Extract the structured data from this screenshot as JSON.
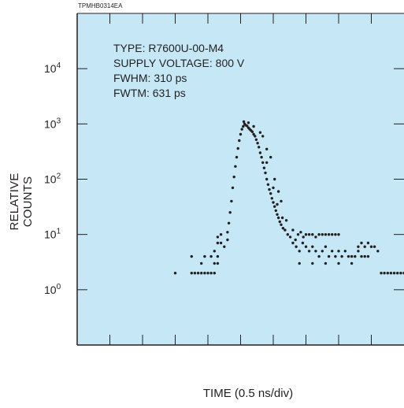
{
  "figure_code": "TPMHB0314EA",
  "annotations": {
    "type": "TYPE: R7600U-00-M4",
    "voltage": "SUPPLY VOLTAGE: 800 V",
    "fwhm": "FWHM: 310 ps",
    "fwtm": "FWTM: 631 ps"
  },
  "colors": {
    "plot_background": "#c6e8f6",
    "points": "#231f20",
    "axes": "#231f20"
  },
  "chart_data": {
    "type": "scatter",
    "title": "",
    "xlabel": "TIME (0.5 ns/div)",
    "ylabel": "RELATIVE COUNTS",
    "y_scale": "log",
    "ylim": [
      0.1,
      100000
    ],
    "y_ticks": [
      {
        "value": 1,
        "base": "10",
        "exp": "0"
      },
      {
        "value": 10,
        "base": "10",
        "exp": "1"
      },
      {
        "value": 100,
        "base": "10",
        "exp": "2"
      },
      {
        "value": 1000,
        "base": "10",
        "exp": "3"
      },
      {
        "value": 10000,
        "base": "10",
        "exp": "4"
      }
    ],
    "x_unit": "ns",
    "xlim": [
      0,
      5
    ],
    "x_major_step": 0.5,
    "grid": false,
    "points": [
      [
        1.5,
        2
      ],
      [
        1.75,
        4
      ],
      [
        1.75,
        2
      ],
      [
        1.8,
        2
      ],
      [
        1.85,
        2
      ],
      [
        1.9,
        2
      ],
      [
        1.95,
        2
      ],
      [
        2.0,
        2
      ],
      [
        2.05,
        2
      ],
      [
        2.1,
        2
      ],
      [
        1.95,
        4
      ],
      [
        2.05,
        4
      ],
      [
        2.15,
        4
      ],
      [
        1.9,
        3
      ],
      [
        2.1,
        3
      ],
      [
        2.15,
        3
      ],
      [
        2.1,
        5
      ],
      [
        2.15,
        7
      ],
      [
        2.15,
        9
      ],
      [
        2.2,
        7
      ],
      [
        2.2,
        10
      ],
      [
        2.25,
        6
      ],
      [
        2.3,
        8
      ],
      [
        2.3,
        11
      ],
      [
        2.32,
        16
      ],
      [
        2.34,
        25
      ],
      [
        2.36,
        40
      ],
      [
        2.38,
        70
      ],
      [
        2.4,
        110
      ],
      [
        2.42,
        170
      ],
      [
        2.44,
        250
      ],
      [
        2.46,
        360
      ],
      [
        2.48,
        500
      ],
      [
        2.5,
        650
      ],
      [
        2.52,
        800
      ],
      [
        2.54,
        900
      ],
      [
        2.56,
        1000
      ],
      [
        2.58,
        950
      ],
      [
        2.6,
        920
      ],
      [
        2.62,
        850
      ],
      [
        2.64,
        800
      ],
      [
        2.66,
        760
      ],
      [
        2.68,
        720
      ],
      [
        2.7,
        650
      ],
      [
        2.72,
        600
      ],
      [
        2.74,
        520
      ],
      [
        2.76,
        450
      ],
      [
        2.78,
        380
      ],
      [
        2.8,
        300
      ],
      [
        2.82,
        250
      ],
      [
        2.84,
        200
      ],
      [
        2.86,
        160
      ],
      [
        2.88,
        130
      ],
      [
        2.9,
        100
      ],
      [
        2.92,
        80
      ],
      [
        2.94,
        65
      ],
      [
        2.96,
        55
      ],
      [
        2.98,
        45
      ],
      [
        3.0,
        38
      ],
      [
        3.02,
        32
      ],
      [
        3.04,
        27
      ],
      [
        3.06,
        23
      ],
      [
        3.08,
        20
      ],
      [
        3.1,
        17
      ],
      [
        3.12,
        15
      ],
      [
        3.15,
        13
      ],
      [
        2.8,
        700
      ],
      [
        2.84,
        600
      ],
      [
        2.9,
        350
      ],
      [
        2.96,
        250
      ],
      [
        3.02,
        100
      ],
      [
        3.08,
        60
      ],
      [
        3.12,
        40
      ],
      [
        2.55,
        1100
      ],
      [
        2.62,
        1050
      ],
      [
        2.7,
        900
      ],
      [
        2.9,
        200
      ],
      [
        3.0,
        70
      ],
      [
        3.06,
        35
      ],
      [
        3.14,
        20
      ],
      [
        3.2,
        18
      ],
      [
        3.18,
        12
      ],
      [
        3.22,
        10
      ],
      [
        3.26,
        9
      ],
      [
        3.3,
        12
      ],
      [
        3.34,
        8
      ],
      [
        3.38,
        10
      ],
      [
        3.42,
        11
      ],
      [
        3.46,
        9
      ],
      [
        3.5,
        10
      ],
      [
        3.3,
        7
      ],
      [
        3.35,
        6
      ],
      [
        3.4,
        5
      ],
      [
        3.45,
        7
      ],
      [
        3.5,
        6
      ],
      [
        3.55,
        5
      ],
      [
        3.6,
        6
      ],
      [
        3.65,
        5
      ],
      [
        3.7,
        4
      ],
      [
        3.55,
        10
      ],
      [
        3.6,
        10
      ],
      [
        3.65,
        9
      ],
      [
        3.7,
        10
      ],
      [
        3.75,
        10
      ],
      [
        3.8,
        10
      ],
      [
        3.85,
        10
      ],
      [
        3.9,
        10
      ],
      [
        3.95,
        10
      ],
      [
        4.0,
        10
      ],
      [
        3.75,
        5
      ],
      [
        3.8,
        6
      ],
      [
        3.85,
        4
      ],
      [
        3.9,
        5
      ],
      [
        3.95,
        4
      ],
      [
        4.0,
        5
      ],
      [
        4.05,
        4
      ],
      [
        4.1,
        5
      ],
      [
        4.15,
        4
      ],
      [
        4.2,
        4
      ],
      [
        4.25,
        4
      ],
      [
        4.3,
        5
      ],
      [
        4.35,
        4
      ],
      [
        4.4,
        4
      ],
      [
        3.4,
        3
      ],
      [
        3.6,
        3
      ],
      [
        3.8,
        3
      ],
      [
        4.0,
        3
      ],
      [
        4.2,
        3
      ],
      [
        4.45,
        4
      ],
      [
        4.3,
        6
      ],
      [
        4.35,
        7
      ],
      [
        4.4,
        6
      ],
      [
        4.45,
        7
      ],
      [
        4.5,
        6
      ],
      [
        4.55,
        6
      ],
      [
        4.6,
        5
      ],
      [
        4.65,
        2
      ],
      [
        4.7,
        2
      ],
      [
        4.75,
        2
      ],
      [
        4.8,
        2
      ],
      [
        4.85,
        2
      ],
      [
        4.9,
        2
      ],
      [
        4.95,
        2
      ],
      [
        5.0,
        2
      ]
    ]
  }
}
